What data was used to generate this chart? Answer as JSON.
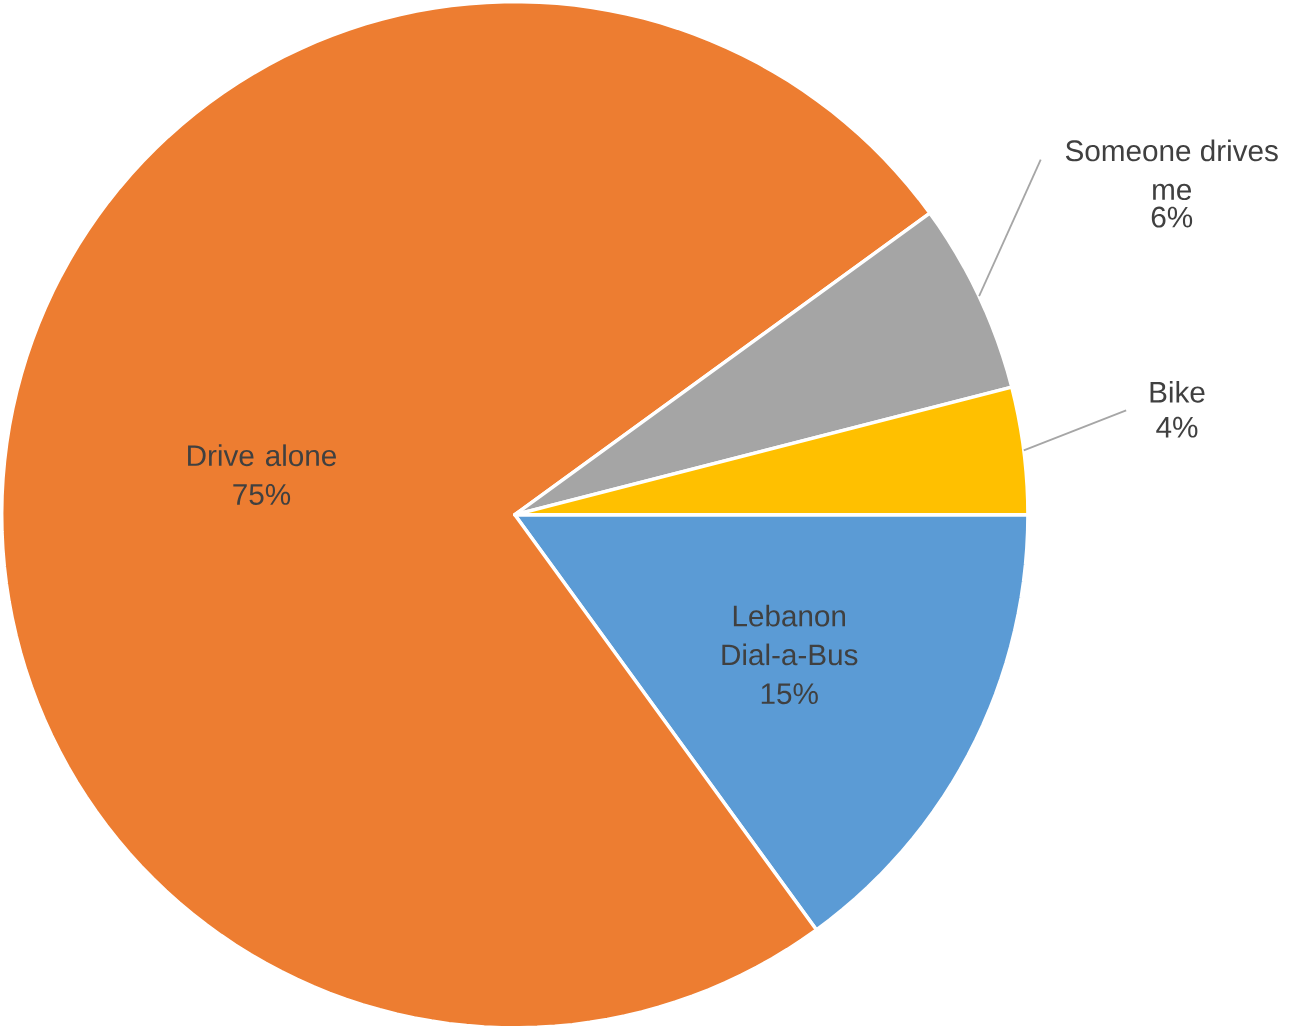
{
  "chart_data": {
    "type": "pie",
    "categories": [
      "Lebanon Dial-a-Bus",
      "Drive alone",
      "Someone drives me",
      "Bike"
    ],
    "values": [
      15,
      75,
      6,
      4
    ],
    "value_labels": [
      "15%",
      "75%",
      "6%",
      "4%"
    ],
    "colors": [
      "#5b9bd5",
      "#ed7d31",
      "#a5a5a5",
      "#ffc000"
    ]
  }
}
